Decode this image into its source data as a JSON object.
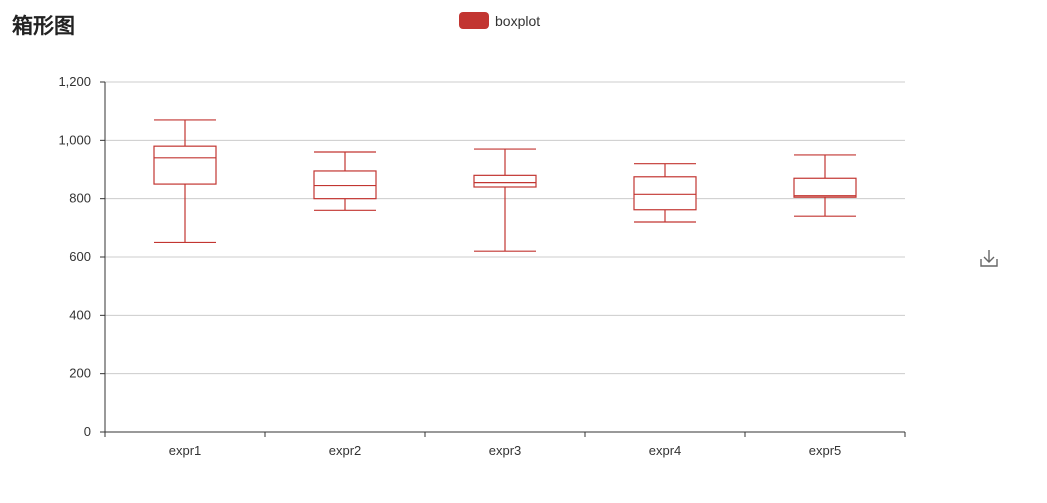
{
  "title": "箱形图",
  "legend": {
    "label": "boxplot",
    "color": "#c23531"
  },
  "toolbox": {
    "icon": "download-icon"
  },
  "colors": {
    "box": "#c23531",
    "grid": "#cccccc",
    "axis": "#333333"
  },
  "chart_data": {
    "type": "boxplot",
    "title": "箱形图",
    "categories": [
      "expr1",
      "expr2",
      "expr3",
      "expr4",
      "expr5"
    ],
    "series": [
      {
        "name": "boxplot",
        "boxes": [
          {
            "min": 650,
            "q1": 850,
            "median": 940,
            "q3": 980,
            "max": 1070
          },
          {
            "min": 760,
            "q1": 800,
            "median": 845,
            "q3": 895,
            "max": 960
          },
          {
            "min": 620,
            "q1": 840,
            "median": 855,
            "q3": 880,
            "max": 970
          },
          {
            "min": 720,
            "q1": 762,
            "median": 815,
            "q3": 875,
            "max": 920
          },
          {
            "min": 740,
            "q1": 805,
            "median": 810,
            "q3": 870,
            "max": 950
          }
        ]
      }
    ],
    "yticks": [
      "0",
      "200",
      "400",
      "600",
      "800",
      "1,000",
      "1,200"
    ],
    "ytick_values": [
      0,
      200,
      400,
      600,
      800,
      1000,
      1200
    ],
    "ylim": [
      0,
      1200
    ],
    "grid": true,
    "legend_position": "top-center"
  }
}
